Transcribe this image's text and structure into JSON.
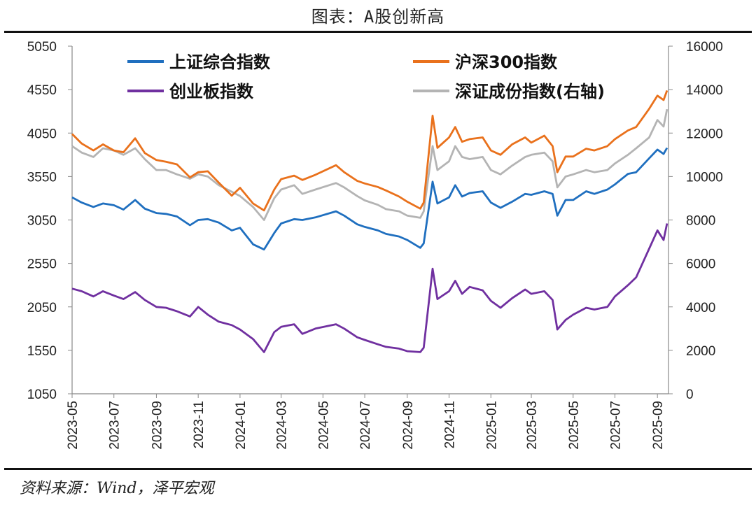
{
  "title": "图表：A股创新高",
  "source": "资料来源：Wind，泽平宏观",
  "chart_data": {
    "type": "line",
    "title": "图表：A股创新高",
    "left_axis": {
      "min": 1050,
      "max": 5050,
      "ticks": [
        1050,
        1550,
        2050,
        2550,
        3050,
        3550,
        4050,
        4550,
        5050
      ]
    },
    "right_axis": {
      "min": 0,
      "max": 16000,
      "ticks": [
        0,
        2000,
        4000,
        6000,
        8000,
        10000,
        12000,
        14000,
        16000
      ]
    },
    "x_labels": [
      "2023-05",
      "2023-07",
      "2023-09",
      "2023-11",
      "2024-01",
      "2024-03",
      "2024-05",
      "2024-07",
      "2024-09",
      "2024-11",
      "2025-01",
      "2025-03",
      "2025-05",
      "2025-07",
      "2025-09"
    ],
    "grid": false,
    "legend_position": "top",
    "series": [
      {
        "name": "上证综合指数",
        "axis": "left",
        "color": "#1f6fbf",
        "points": [
          [
            "2023-05",
            3310
          ],
          [
            "2023-05-15",
            3250
          ],
          [
            "2023-06",
            3200
          ],
          [
            "2023-06-15",
            3240
          ],
          [
            "2023-07",
            3220
          ],
          [
            "2023-07-15",
            3170
          ],
          [
            "2023-08",
            3280
          ],
          [
            "2023-08-15",
            3180
          ],
          [
            "2023-09",
            3130
          ],
          [
            "2023-09-15",
            3120
          ],
          [
            "2023-10",
            3090
          ],
          [
            "2023-10-20",
            2990
          ],
          [
            "2023-11",
            3050
          ],
          [
            "2023-11-15",
            3060
          ],
          [
            "2023-12",
            3020
          ],
          [
            "2023-12-20",
            2930
          ],
          [
            "2024-01",
            2960
          ],
          [
            "2024-01-20",
            2770
          ],
          [
            "2024-02-05",
            2710
          ],
          [
            "2024-02-20",
            2900
          ],
          [
            "2024-03",
            3010
          ],
          [
            "2024-03-20",
            3060
          ],
          [
            "2024-04",
            3050
          ],
          [
            "2024-04-20",
            3080
          ],
          [
            "2024-05-20",
            3150
          ],
          [
            "2024-06",
            3100
          ],
          [
            "2024-06-20",
            3000
          ],
          [
            "2024-07",
            2970
          ],
          [
            "2024-07-20",
            2930
          ],
          [
            "2024-08",
            2890
          ],
          [
            "2024-08-20",
            2860
          ],
          [
            "2024-09",
            2820
          ],
          [
            "2024-09-20",
            2730
          ],
          [
            "2024-09-25",
            2780
          ],
          [
            "2024-10-08",
            3490
          ],
          [
            "2024-10-15",
            3240
          ],
          [
            "2024-11",
            3310
          ],
          [
            "2024-11-10",
            3450
          ],
          [
            "2024-11-20",
            3320
          ],
          [
            "2024-12",
            3360
          ],
          [
            "2024-12-20",
            3380
          ],
          [
            "2025-01",
            3250
          ],
          [
            "2025-01-15",
            3190
          ],
          [
            "2025-02",
            3260
          ],
          [
            "2025-02-20",
            3350
          ],
          [
            "2025-03",
            3340
          ],
          [
            "2025-03-20",
            3380
          ],
          [
            "2025-04",
            3350
          ],
          [
            "2025-04-08",
            3100
          ],
          [
            "2025-04-20",
            3280
          ],
          [
            "2025-05",
            3280
          ],
          [
            "2025-05-20",
            3380
          ],
          [
            "2025-06",
            3350
          ],
          [
            "2025-06-20",
            3400
          ],
          [
            "2025-07",
            3460
          ],
          [
            "2025-07-20",
            3580
          ],
          [
            "2025-08",
            3600
          ],
          [
            "2025-08-20",
            3760
          ],
          [
            "2025-09",
            3860
          ],
          [
            "2025-09-10",
            3810
          ],
          [
            "2025-09-15",
            3880
          ]
        ]
      },
      {
        "name": "沪深300指数",
        "axis": "left",
        "color": "#e9711c",
        "points": [
          [
            "2023-05",
            4040
          ],
          [
            "2023-05-15",
            3930
          ],
          [
            "2023-06",
            3850
          ],
          [
            "2023-06-15",
            3920
          ],
          [
            "2023-07",
            3850
          ],
          [
            "2023-07-15",
            3830
          ],
          [
            "2023-08",
            3990
          ],
          [
            "2023-08-15",
            3820
          ],
          [
            "2023-09",
            3740
          ],
          [
            "2023-09-15",
            3720
          ],
          [
            "2023-10",
            3690
          ],
          [
            "2023-10-20",
            3540
          ],
          [
            "2023-11",
            3600
          ],
          [
            "2023-11-15",
            3610
          ],
          [
            "2023-12",
            3480
          ],
          [
            "2023-12-20",
            3330
          ],
          [
            "2024-01",
            3420
          ],
          [
            "2024-01-20",
            3240
          ],
          [
            "2024-02-05",
            3160
          ],
          [
            "2024-02-20",
            3400
          ],
          [
            "2024-03",
            3520
          ],
          [
            "2024-03-20",
            3560
          ],
          [
            "2024-04",
            3510
          ],
          [
            "2024-04-20",
            3570
          ],
          [
            "2024-05-20",
            3680
          ],
          [
            "2024-06",
            3600
          ],
          [
            "2024-06-20",
            3500
          ],
          [
            "2024-07",
            3470
          ],
          [
            "2024-07-20",
            3430
          ],
          [
            "2024-08",
            3390
          ],
          [
            "2024-08-20",
            3320
          ],
          [
            "2024-09",
            3260
          ],
          [
            "2024-09-20",
            3180
          ],
          [
            "2024-09-25",
            3250
          ],
          [
            "2024-10-08",
            4250
          ],
          [
            "2024-10-15",
            3880
          ],
          [
            "2024-11",
            4000
          ],
          [
            "2024-11-10",
            4120
          ],
          [
            "2024-11-20",
            3950
          ],
          [
            "2024-12",
            3980
          ],
          [
            "2024-12-20",
            4000
          ],
          [
            "2025-01",
            3850
          ],
          [
            "2025-01-15",
            3800
          ],
          [
            "2025-02",
            3920
          ],
          [
            "2025-02-20",
            4000
          ],
          [
            "2025-03",
            3940
          ],
          [
            "2025-03-20",
            4020
          ],
          [
            "2025-04",
            3900
          ],
          [
            "2025-04-08",
            3600
          ],
          [
            "2025-04-20",
            3780
          ],
          [
            "2025-05",
            3780
          ],
          [
            "2025-05-20",
            3870
          ],
          [
            "2025-06",
            3850
          ],
          [
            "2025-06-20",
            3900
          ],
          [
            "2025-07",
            3980
          ],
          [
            "2025-07-20",
            4080
          ],
          [
            "2025-08",
            4120
          ],
          [
            "2025-08-20",
            4330
          ],
          [
            "2025-09",
            4480
          ],
          [
            "2025-09-10",
            4430
          ],
          [
            "2025-09-15",
            4540
          ]
        ]
      },
      {
        "name": "创业板指数",
        "axis": "left",
        "color": "#7030a0",
        "points": [
          [
            "2023-05",
            2260
          ],
          [
            "2023-05-15",
            2230
          ],
          [
            "2023-06",
            2170
          ],
          [
            "2023-06-15",
            2230
          ],
          [
            "2023-07",
            2180
          ],
          [
            "2023-07-15",
            2140
          ],
          [
            "2023-08",
            2220
          ],
          [
            "2023-08-15",
            2130
          ],
          [
            "2023-09",
            2050
          ],
          [
            "2023-09-15",
            2040
          ],
          [
            "2023-10",
            2000
          ],
          [
            "2023-10-20",
            1940
          ],
          [
            "2023-11",
            2050
          ],
          [
            "2023-11-15",
            1960
          ],
          [
            "2023-12",
            1880
          ],
          [
            "2023-12-20",
            1840
          ],
          [
            "2024-01",
            1790
          ],
          [
            "2024-01-20",
            1680
          ],
          [
            "2024-02-05",
            1530
          ],
          [
            "2024-02-20",
            1760
          ],
          [
            "2024-03",
            1820
          ],
          [
            "2024-03-20",
            1850
          ],
          [
            "2024-04",
            1740
          ],
          [
            "2024-04-20",
            1800
          ],
          [
            "2024-05-20",
            1850
          ],
          [
            "2024-06",
            1800
          ],
          [
            "2024-06-20",
            1700
          ],
          [
            "2024-07",
            1670
          ],
          [
            "2024-07-20",
            1620
          ],
          [
            "2024-08",
            1590
          ],
          [
            "2024-08-20",
            1570
          ],
          [
            "2024-09",
            1540
          ],
          [
            "2024-09-20",
            1530
          ],
          [
            "2024-09-25",
            1580
          ],
          [
            "2024-10-08",
            2490
          ],
          [
            "2024-10-15",
            2140
          ],
          [
            "2024-11",
            2230
          ],
          [
            "2024-11-10",
            2350
          ],
          [
            "2024-11-20",
            2200
          ],
          [
            "2024-12",
            2280
          ],
          [
            "2024-12-20",
            2240
          ],
          [
            "2025-01",
            2120
          ],
          [
            "2025-01-15",
            2040
          ],
          [
            "2025-02",
            2150
          ],
          [
            "2025-02-20",
            2250
          ],
          [
            "2025-03",
            2200
          ],
          [
            "2025-03-20",
            2230
          ],
          [
            "2025-04",
            2130
          ],
          [
            "2025-04-08",
            1790
          ],
          [
            "2025-04-20",
            1900
          ],
          [
            "2025-05",
            1960
          ],
          [
            "2025-05-20",
            2040
          ],
          [
            "2025-06",
            2020
          ],
          [
            "2025-06-20",
            2050
          ],
          [
            "2025-07",
            2170
          ],
          [
            "2025-07-20",
            2300
          ],
          [
            "2025-08",
            2390
          ],
          [
            "2025-08-20",
            2720
          ],
          [
            "2025-09",
            2930
          ],
          [
            "2025-09-10",
            2820
          ],
          [
            "2025-09-15",
            3010
          ]
        ]
      },
      {
        "name": "深证成份指数(右轴)",
        "axis": "right",
        "color": "#b4b4b4",
        "points": [
          [
            "2023-05",
            11400
          ],
          [
            "2023-05-15",
            11100
          ],
          [
            "2023-06",
            10900
          ],
          [
            "2023-06-15",
            11300
          ],
          [
            "2023-07",
            11200
          ],
          [
            "2023-07-15",
            11000
          ],
          [
            "2023-08",
            11300
          ],
          [
            "2023-08-15",
            10800
          ],
          [
            "2023-09",
            10300
          ],
          [
            "2023-09-15",
            10300
          ],
          [
            "2023-10",
            10100
          ],
          [
            "2023-10-20",
            9900
          ],
          [
            "2023-11",
            10100
          ],
          [
            "2023-11-15",
            10000
          ],
          [
            "2023-12",
            9600
          ],
          [
            "2023-12-20",
            9300
          ],
          [
            "2024-01",
            9100
          ],
          [
            "2024-01-20",
            8600
          ],
          [
            "2024-02-05",
            8000
          ],
          [
            "2024-02-20",
            9000
          ],
          [
            "2024-03",
            9400
          ],
          [
            "2024-03-20",
            9600
          ],
          [
            "2024-04",
            9200
          ],
          [
            "2024-04-20",
            9400
          ],
          [
            "2024-05-20",
            9700
          ],
          [
            "2024-06",
            9500
          ],
          [
            "2024-06-20",
            9100
          ],
          [
            "2024-07",
            8900
          ],
          [
            "2024-07-20",
            8700
          ],
          [
            "2024-08",
            8500
          ],
          [
            "2024-08-20",
            8400
          ],
          [
            "2024-09",
            8200
          ],
          [
            "2024-09-20",
            8100
          ],
          [
            "2024-09-25",
            8400
          ],
          [
            "2024-10-08",
            11400
          ],
          [
            "2024-10-15",
            10300
          ],
          [
            "2024-11",
            10700
          ],
          [
            "2024-11-10",
            11400
          ],
          [
            "2024-11-20",
            10900
          ],
          [
            "2024-12",
            10800
          ],
          [
            "2024-12-20",
            10900
          ],
          [
            "2025-01",
            10300
          ],
          [
            "2025-01-15",
            10100
          ],
          [
            "2025-02",
            10500
          ],
          [
            "2025-02-20",
            10900
          ],
          [
            "2025-03",
            11000
          ],
          [
            "2025-03-20",
            11100
          ],
          [
            "2025-04",
            10700
          ],
          [
            "2025-04-08",
            9500
          ],
          [
            "2025-04-20",
            10000
          ],
          [
            "2025-05",
            10100
          ],
          [
            "2025-05-20",
            10300
          ],
          [
            "2025-06",
            10200
          ],
          [
            "2025-06-20",
            10300
          ],
          [
            "2025-07",
            10600
          ],
          [
            "2025-07-20",
            11000
          ],
          [
            "2025-08",
            11300
          ],
          [
            "2025-08-20",
            11800
          ],
          [
            "2025-09",
            12600
          ],
          [
            "2025-09-10",
            12300
          ],
          [
            "2025-09-15",
            13100
          ]
        ]
      }
    ]
  }
}
